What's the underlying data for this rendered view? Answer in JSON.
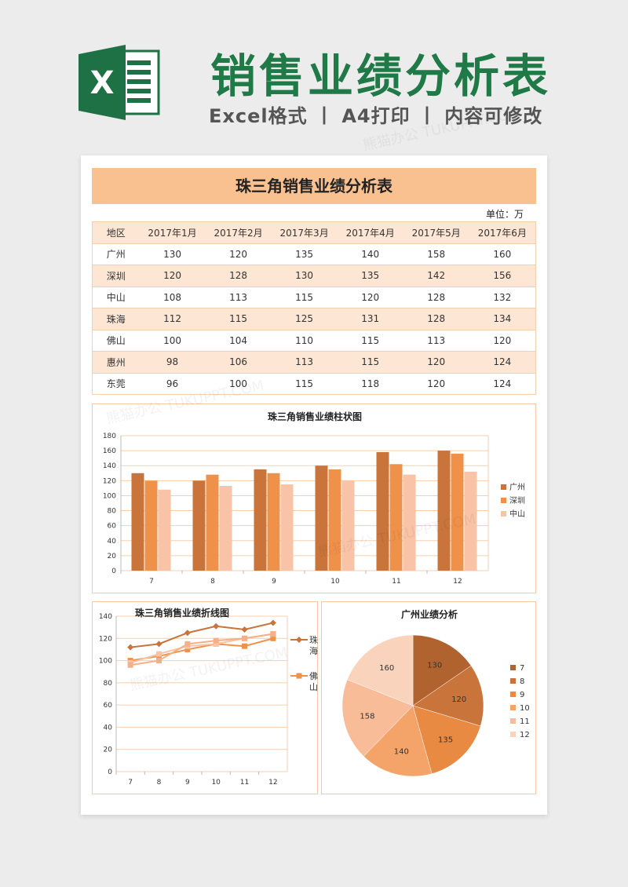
{
  "header": {
    "title": "销售业绩分析表",
    "subtitle": "Excel格式 丨 A4打印 丨 内容可修改",
    "logo_letter": "X"
  },
  "sheet": {
    "title": "珠三角销售业绩分析表",
    "unit": "单位：万"
  },
  "table": {
    "columns": [
      "地区",
      "2017年1月",
      "2017年2月",
      "2017年3月",
      "2017年4月",
      "2017年5月",
      "2017年6月"
    ],
    "rows": [
      [
        "广州",
        "130",
        "120",
        "135",
        "140",
        "158",
        "160"
      ],
      [
        "深圳",
        "120",
        "128",
        "130",
        "135",
        "142",
        "156"
      ],
      [
        "中山",
        "108",
        "113",
        "115",
        "120",
        "128",
        "132"
      ],
      [
        "珠海",
        "112",
        "115",
        "125",
        "131",
        "128",
        "134"
      ],
      [
        "佛山",
        "100",
        "104",
        "110",
        "115",
        "113",
        "120"
      ],
      [
        "惠州",
        "98",
        "106",
        "113",
        "115",
        "120",
        "124"
      ],
      [
        "东莞",
        "96",
        "100",
        "115",
        "118",
        "120",
        "124"
      ]
    ]
  },
  "watermark": "熊猫办公 TUKUPPT.COM",
  "colors": {
    "brand_green": "#1f7a47",
    "title_band": "#f9c090",
    "row_band": "#fde6d4",
    "series_1": "#c8743a",
    "series_2": "#f0914a",
    "series_3": "#f8c3a6"
  },
  "chart_data": [
    {
      "type": "bar",
      "title": "珠三角销售业绩柱状图",
      "categories": [
        "7",
        "8",
        "9",
        "10",
        "11",
        "12"
      ],
      "series": [
        {
          "name": "广州",
          "values": [
            130,
            120,
            135,
            140,
            158,
            160
          ]
        },
        {
          "name": "深圳",
          "values": [
            120,
            128,
            130,
            135,
            142,
            156
          ]
        },
        {
          "name": "中山",
          "values": [
            108,
            113,
            115,
            120,
            128,
            132
          ]
        }
      ],
      "ylim": [
        0,
        180
      ],
      "yticks": [
        0,
        20,
        40,
        60,
        80,
        100,
        120,
        140,
        160,
        180
      ],
      "legend": "right",
      "grid": true
    },
    {
      "type": "line",
      "title": "珠三角销售业绩折线图",
      "categories": [
        "7",
        "8",
        "9",
        "10",
        "11",
        "12"
      ],
      "series": [
        {
          "name": "珠海",
          "values": [
            112,
            115,
            125,
            131,
            128,
            134
          ]
        },
        {
          "name": "佛山",
          "values": [
            100,
            104,
            110,
            115,
            113,
            120
          ]
        },
        {
          "name": "",
          "values": [
            98,
            106,
            113,
            115,
            120,
            124
          ]
        },
        {
          "name": "",
          "values": [
            96,
            100,
            115,
            118,
            120,
            124
          ]
        }
      ],
      "ylim": [
        0,
        140
      ],
      "yticks": [
        0,
        20,
        40,
        60,
        80,
        100,
        120,
        140
      ],
      "legend": "right",
      "grid": true
    },
    {
      "type": "pie",
      "title": "广州业绩分析",
      "labels": [
        "7",
        "8",
        "9",
        "10",
        "11",
        "12"
      ],
      "values": [
        130,
        120,
        135,
        140,
        158,
        160
      ],
      "colors": [
        "#b0632e",
        "#c8743a",
        "#e88a42",
        "#f4a468",
        "#f8bc98",
        "#fad3bc"
      ],
      "legend": "right"
    }
  ]
}
